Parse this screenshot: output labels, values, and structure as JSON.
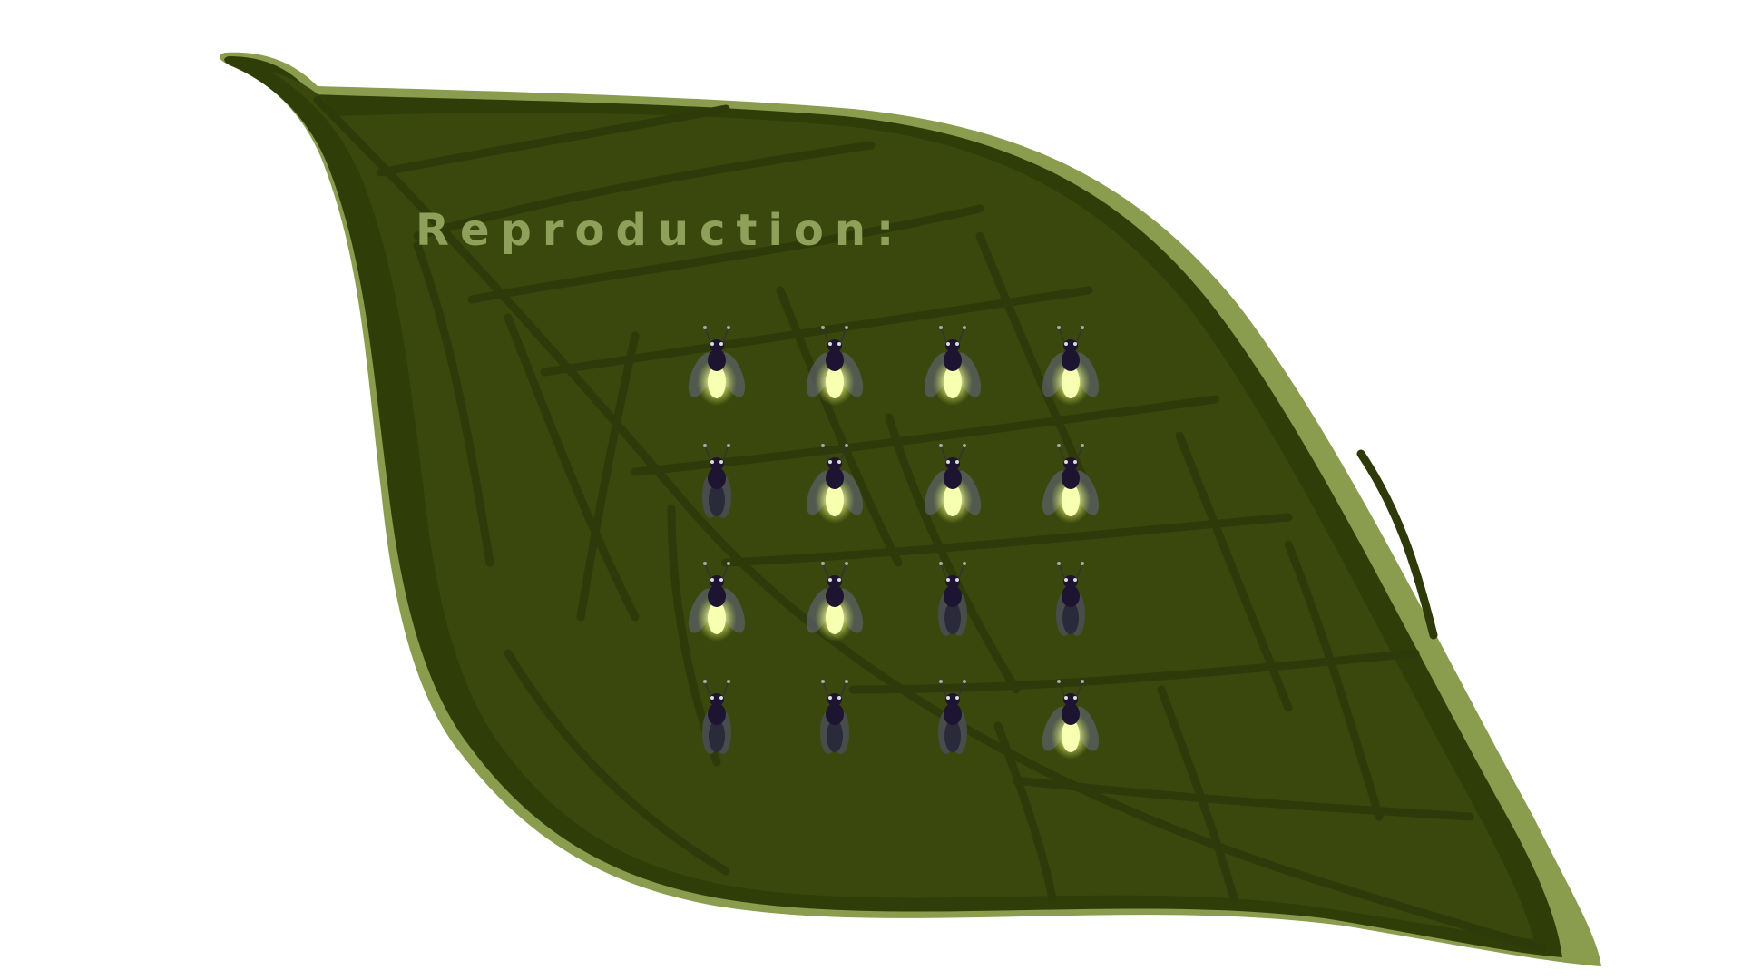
{
  "title": "Reproduction:",
  "colors": {
    "leaf_dark": "#2f3d08",
    "leaf_main": "#3b480d",
    "leaf_vein": "#2e3a0a",
    "leaf_edge": "#8a9c4e",
    "title": "#8fa05a",
    "glow": "#f4ff9a",
    "body": "#1c1430"
  },
  "fireflies": [
    {
      "lit": true
    },
    {
      "lit": true
    },
    {
      "lit": true
    },
    {
      "lit": true
    },
    {
      "lit": false
    },
    {
      "lit": true
    },
    {
      "lit": true
    },
    {
      "lit": true
    },
    {
      "lit": true
    },
    {
      "lit": true
    },
    {
      "lit": false
    },
    {
      "lit": false
    },
    {
      "lit": false
    },
    {
      "lit": false
    },
    {
      "lit": false
    },
    {
      "lit": true
    }
  ],
  "icons": {
    "leaf": "leaf-icon",
    "firefly": "firefly-icon"
  }
}
